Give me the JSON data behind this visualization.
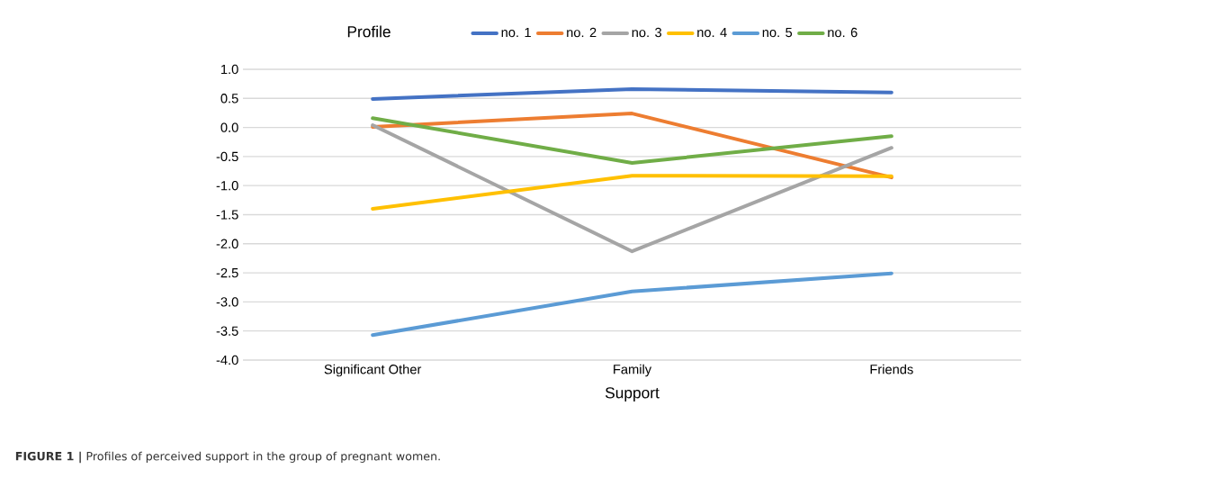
{
  "chart_data": {
    "type": "line",
    "title": "Profile",
    "xlabel": "Support",
    "categories": [
      "Significant Other",
      "Family",
      "Friends"
    ],
    "series": [
      {
        "name": "no. 1",
        "color": "#4472c4",
        "values": [
          0.49,
          0.66,
          0.6
        ]
      },
      {
        "name": "no. 2",
        "color": "#ed7d31",
        "values": [
          0.01,
          0.24,
          -0.86
        ]
      },
      {
        "name": "no. 3",
        "color": "#a5a5a5",
        "values": [
          0.04,
          -2.13,
          -0.35
        ]
      },
      {
        "name": "no. 4",
        "color": "#ffc000",
        "values": [
          -1.4,
          -0.83,
          -0.84
        ]
      },
      {
        "name": "no. 5",
        "color": "#5b9bd5",
        "values": [
          -3.57,
          -2.82,
          -2.51
        ]
      },
      {
        "name": "no. 6",
        "color": "#70ad47",
        "values": [
          0.16,
          -0.61,
          -0.15
        ]
      }
    ],
    "ylim": [
      -4,
      1
    ],
    "yticks": [
      {
        "value": -4,
        "label": "-4.0"
      },
      {
        "value": -3.5,
        "label": "-3.5"
      },
      {
        "value": -3,
        "label": "-3.0"
      },
      {
        "value": -2.5,
        "label": "-2.5"
      },
      {
        "value": -2,
        "label": "-2.0"
      },
      {
        "value": -1.5,
        "label": "-1.5"
      },
      {
        "value": -1,
        "label": "-1.0"
      },
      {
        "value": -0.5,
        "label": "-0.5"
      },
      {
        "value": 0,
        "label": "0.0"
      },
      {
        "value": 0.5,
        "label": "0.5"
      },
      {
        "value": 1,
        "label": "1.0"
      }
    ],
    "grid": "y",
    "legend": "top",
    "marker": "none",
    "line_style": "solid",
    "annotations": [
      "**FIGURE 1 |** Profiles of perceived support in the group of pregnant women."
    ]
  }
}
